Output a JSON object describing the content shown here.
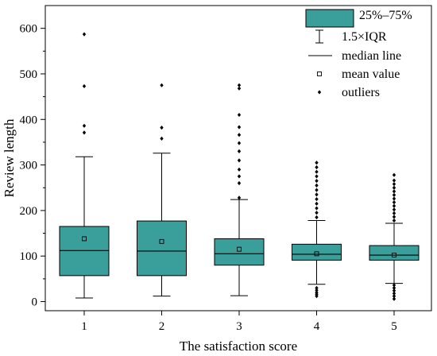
{
  "chart_data": {
    "type": "box",
    "xlabel": "The satisfaction score",
    "ylabel": "Review length",
    "ylim": [
      -20,
      650
    ],
    "yticks": [
      0,
      100,
      200,
      300,
      400,
      500,
      600
    ],
    "categories": [
      "1",
      "2",
      "3",
      "4",
      "5"
    ],
    "box_color": "#3a9e9b",
    "legend": {
      "position": "top-right",
      "items": [
        {
          "label": "25%–75%",
          "symbol": "box"
        },
        {
          "label": "1.5×IQR",
          "symbol": "whisker"
        },
        {
          "label": "median line",
          "symbol": "line"
        },
        {
          "label": "mean value",
          "symbol": "square"
        },
        {
          "label": "outliers",
          "symbol": "diamond"
        }
      ]
    },
    "boxes": [
      {
        "category": "1",
        "q1": 57,
        "median": 112,
        "q3": 165,
        "whisker_low": 8,
        "whisker_high": 318,
        "mean": 138,
        "outliers": [
          371,
          386,
          473,
          587
        ]
      },
      {
        "category": "2",
        "q1": 57,
        "median": 111,
        "q3": 177,
        "whisker_low": 12,
        "whisker_high": 326,
        "mean": 132,
        "outliers": [
          358,
          382,
          475
        ]
      },
      {
        "category": "3",
        "q1": 80,
        "median": 105,
        "q3": 138,
        "whisker_low": 13,
        "whisker_high": 224,
        "mean": 115,
        "outliers": [
          228,
          260,
          275,
          290,
          310,
          330,
          348,
          366,
          383,
          410,
          468,
          475
        ]
      },
      {
        "category": "4",
        "q1": 91,
        "median": 104,
        "q3": 126,
        "whisker_low": 38,
        "whisker_high": 178,
        "mean": 105,
        "outliers": [
          12,
          16,
          20,
          25,
          30,
          185,
          195,
          205,
          215,
          225,
          235,
          245,
          255,
          265,
          275,
          285,
          295,
          305
        ]
      },
      {
        "category": "5",
        "q1": 91,
        "median": 102,
        "q3": 123,
        "whisker_low": 40,
        "whisker_high": 172,
        "mean": 102,
        "outliers": [
          6,
          12,
          18,
          24,
          30,
          36,
          178,
          186,
          194,
          202,
          210,
          218,
          226,
          234,
          242,
          250,
          258,
          266,
          278
        ]
      }
    ]
  }
}
